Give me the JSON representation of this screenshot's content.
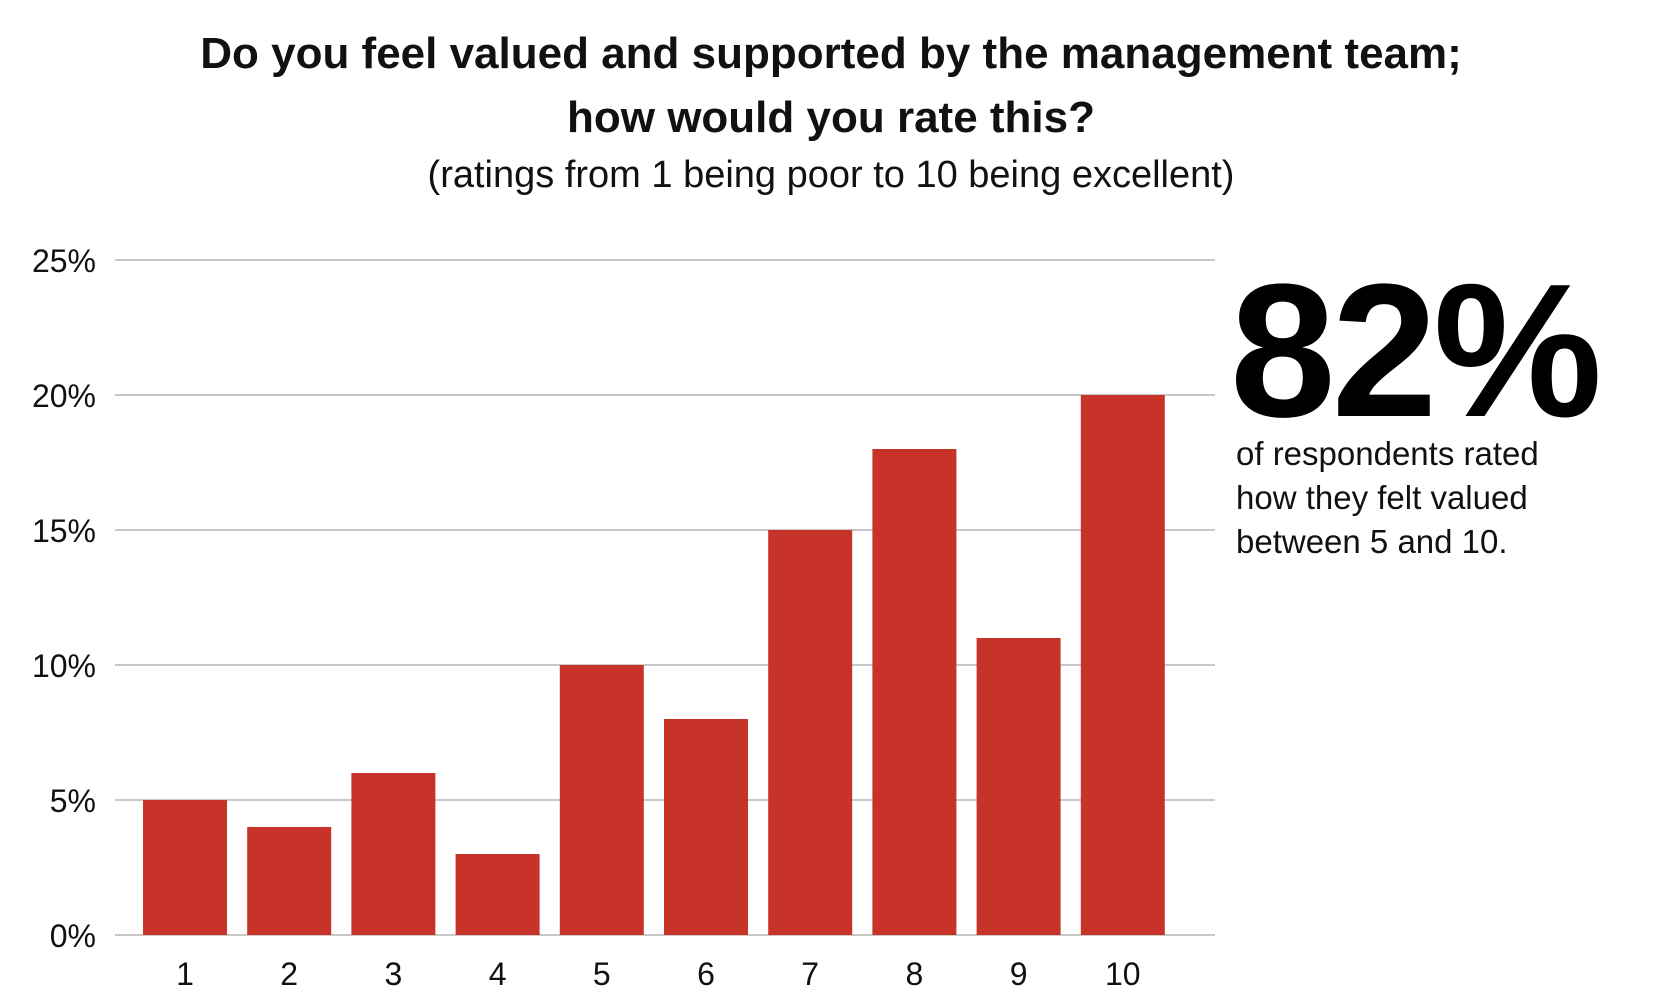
{
  "title_line1": "Do you feel valued and supported by the management team;",
  "title_line2": "how would you rate this?",
  "subtitle": "(ratings from 1 being poor to 10 being excellent)",
  "callout": {
    "value": "82%",
    "lines": [
      "of respondents rated",
      "how they felt valued",
      "between 5 and 10."
    ]
  },
  "colors": {
    "bar": "#c73328",
    "grid": "#c8c8c8"
  },
  "chart_data": {
    "type": "bar",
    "title": "Do you feel valued and supported by the management team; how would you rate this?",
    "subtitle": "(ratings from 1 being poor to 10 being excellent)",
    "categories": [
      "1",
      "2",
      "3",
      "4",
      "5",
      "6",
      "7",
      "8",
      "9",
      "10"
    ],
    "values": [
      5,
      4,
      6,
      3,
      10,
      8,
      15,
      18,
      11,
      20
    ],
    "unit": "%",
    "ylim": [
      0,
      25
    ],
    "yticks": [
      "0%",
      "5%",
      "10%",
      "15%",
      "20%",
      "25%"
    ],
    "ytick_values": [
      0,
      5,
      10,
      15,
      20,
      25
    ],
    "grid": true,
    "legend": "none"
  }
}
